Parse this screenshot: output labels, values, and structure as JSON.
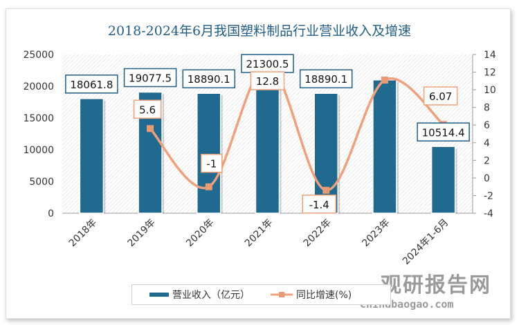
{
  "title": "2018-2024年6月我国塑料制品行业营业收入及增速",
  "watermark": {
    "name": "观研报告网",
    "url": "chinabaogao.com"
  },
  "chart_data": {
    "type": "bar+line",
    "title": "2018-2024年6月我国塑料制品行业营业收入及增速",
    "categories": [
      "2018年",
      "2019年",
      "2020年",
      "2021年",
      "2022年",
      "2023年",
      "2024年1-6月"
    ],
    "series": [
      {
        "name": "营业收入（亿元）",
        "type": "bar",
        "axis": "left",
        "color": "#1f6a8e",
        "values": [
          18061.8,
          19077.5,
          18890.1,
          21300.5,
          18890.1,
          21000,
          10514.4
        ],
        "labels": [
          "18061.8",
          "19077.5",
          "18890.1",
          "21300.5",
          "18890.1",
          "",
          "10514.4"
        ]
      },
      {
        "name": "同比增速(%)",
        "type": "line",
        "axis": "right",
        "color": "#f0a07a",
        "values": [
          null,
          5.6,
          -1,
          12.8,
          -1.4,
          11.1,
          6.07
        ],
        "labels": [
          "",
          "5.6",
          "-1",
          "12.8",
          "-1.4",
          "",
          "6.07"
        ]
      }
    ],
    "left_axis": {
      "min": 0,
      "max": 25000,
      "ticks": [
        "0",
        "5000",
        "10000",
        "15000",
        "20000",
        "25000"
      ]
    },
    "right_axis": {
      "min": -4,
      "max": 14,
      "ticks": [
        "-4",
        "-2",
        "0",
        "2",
        "4",
        "6",
        "8",
        "10",
        "12",
        "14"
      ]
    },
    "legend": "bottom"
  }
}
